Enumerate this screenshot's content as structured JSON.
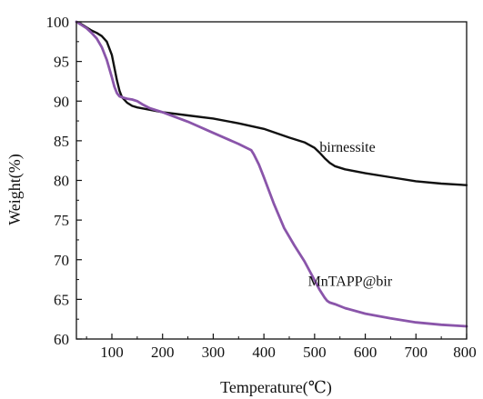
{
  "chart_data": {
    "type": "line",
    "title": "",
    "xlabel": "Temperature(℃)",
    "ylabel": "Weight(%)",
    "xlim": [
      30,
      800
    ],
    "ylim": [
      60,
      100
    ],
    "x_ticks": [
      100,
      200,
      300,
      400,
      500,
      600,
      700,
      800
    ],
    "y_ticks": [
      60,
      65,
      70,
      75,
      80,
      85,
      90,
      95,
      100
    ],
    "grid": false,
    "legend": "none",
    "series": [
      {
        "name": "birnessite",
        "color": "#111111",
        "x": [
          30,
          40,
          50,
          60,
          70,
          80,
          90,
          100,
          105,
          110,
          115,
          120,
          130,
          140,
          150,
          175,
          200,
          250,
          300,
          350,
          400,
          450,
          480,
          500,
          510,
          520,
          530,
          540,
          560,
          600,
          650,
          700,
          750,
          800
        ],
        "y": [
          100,
          99.7,
          99.3,
          98.9,
          98.6,
          98.2,
          97.5,
          95.8,
          94.2,
          92.6,
          91.3,
          90.5,
          89.8,
          89.4,
          89.2,
          88.9,
          88.6,
          88.2,
          87.8,
          87.2,
          86.5,
          85.4,
          84.8,
          84.1,
          83.5,
          82.8,
          82.2,
          81.8,
          81.4,
          80.9,
          80.4,
          79.9,
          79.6,
          79.4
        ]
      },
      {
        "name": "MnTAPP@bir",
        "color": "#8a55aa",
        "x": [
          30,
          40,
          50,
          60,
          70,
          80,
          90,
          100,
          105,
          110,
          115,
          120,
          125,
          130,
          140,
          150,
          160,
          175,
          200,
          250,
          300,
          350,
          375,
          380,
          390,
          400,
          420,
          440,
          460,
          480,
          500,
          510,
          520,
          525,
          530,
          540,
          560,
          600,
          650,
          700,
          750,
          800
        ],
        "y": [
          100,
          99.6,
          99.2,
          98.6,
          97.9,
          96.8,
          95.2,
          93.0,
          91.8,
          91.0,
          90.6,
          90.5,
          90.4,
          90.3,
          90.2,
          90.0,
          89.6,
          89.1,
          88.6,
          87.4,
          86.0,
          84.6,
          83.8,
          83.3,
          82.0,
          80.4,
          77.0,
          74.0,
          71.8,
          69.8,
          67.4,
          66.2,
          65.2,
          64.8,
          64.6,
          64.4,
          63.9,
          63.2,
          62.6,
          62.1,
          61.8,
          61.6
        ]
      }
    ],
    "annotations": [
      {
        "text": "birnessite",
        "x": 565,
        "y": 83.6
      },
      {
        "text": "MnTAPP@bir",
        "x": 570,
        "y": 66.7
      }
    ]
  }
}
